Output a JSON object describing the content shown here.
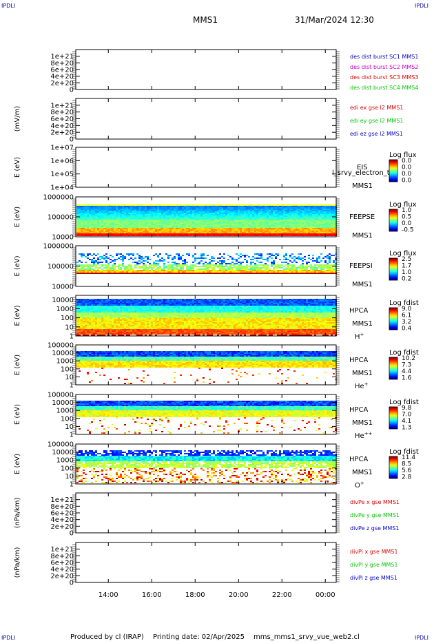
{
  "corner_label": "IPDLI",
  "header": {
    "spacecraft": "MMS1",
    "datetime": "31/Mar/2024 12:30"
  },
  "footer": {
    "produced_by": "Produced by cl (IRAP)",
    "printing_date": "Printing date: 02/Apr/2025",
    "filename": "mms_mms1_srvy_vue_web2.cl"
  },
  "x_axis": {
    "ticks": [
      "14:00",
      "16:00",
      "18:00",
      "20:00",
      "22:00",
      "00:00"
    ],
    "tick_hours": [
      14,
      16,
      18,
      20,
      22,
      24
    ],
    "range_hours": [
      12.5,
      24.5
    ]
  },
  "colors": {
    "red": "#e00000",
    "green": "#00c800",
    "blue": "#0000c8",
    "magenta": "#c800c8"
  },
  "chart_data": [
    {
      "type": "line",
      "panel": 1,
      "ylabel": "",
      "ylim": [
        0,
        1.2e+21
      ],
      "ticks": [
        "0",
        "2e+20",
        "4e+20",
        "6e+20",
        "8e+20",
        "1e+21"
      ],
      "tick_values": [
        0,
        2e+20,
        4e+20,
        6e+20,
        8e+20,
        1e+21
      ],
      "legend": [
        {
          "text": "des dist burst SC1 MMS1",
          "color": "#0000c8"
        },
        {
          "text": "des dist burst SC2 MMS2",
          "color": "#c800c8"
        },
        {
          "text": "des dist burst SC3 MMS3",
          "color": "#e00000"
        },
        {
          "text": "des dist burst SC4 MMS4",
          "color": "#00c800"
        }
      ]
    },
    {
      "type": "line",
      "panel": 2,
      "ylabel": "(mV/m)",
      "ylim": [
        0,
        1.2e+21
      ],
      "ticks": [
        "0",
        "2e+20",
        "4e+20",
        "6e+20",
        "8e+20",
        "1e+21"
      ],
      "tick_values": [
        0,
        2e+20,
        4e+20,
        6e+20,
        8e+20,
        1e+21
      ],
      "legend": [
        {
          "text": "edi ex gse l2 MMS1",
          "color": "#e00000"
        },
        {
          "text": "edi ey gse l2 MMS1",
          "color": "#00c800"
        },
        {
          "text": "edi ez gse l2 MMS1",
          "color": "#0000c8"
        }
      ]
    },
    {
      "type": "heatmap",
      "panel": 3,
      "ylabel": "E (eV)",
      "log_scale": true,
      "ylim": [
        10000,
        10000000
      ],
      "ticks": [
        "1e+04",
        "1e+05",
        "1e+06",
        "1e+07"
      ],
      "tick_values": [
        10000,
        100000,
        1000000,
        10000000
      ],
      "instrument": "EIS",
      "spacecraft": "MMS1",
      "overlay_text": "l_srvy_electron_to",
      "colorbar": {
        "title": "Log flux",
        "ticks": [
          "0.0",
          "0.0",
          "0.0",
          "0.0"
        ]
      },
      "empty": true
    },
    {
      "type": "heatmap",
      "panel": 4,
      "ylabel": "E (eV)",
      "log_scale": true,
      "ylim": [
        10000,
        1000000
      ],
      "ticks": [
        "10000",
        "100000",
        "1000000"
      ],
      "tick_values": [
        10000,
        100000,
        1000000
      ],
      "instrument": "FEEPSE",
      "spacecraft": "MMS1",
      "colorbar": {
        "title": "Log flux",
        "ticks": [
          "1.0",
          "0.5",
          "0.0",
          "-0.5"
        ]
      },
      "data_range": [
        30000,
        650000
      ],
      "peak_energy": 40000
    },
    {
      "type": "heatmap",
      "panel": 5,
      "ylabel": "E (eV)",
      "log_scale": true,
      "ylim": [
        10000,
        1000000
      ],
      "ticks": [
        "10000",
        "100000",
        "1000000"
      ],
      "tick_values": [
        10000,
        100000,
        1000000
      ],
      "instrument": "FEEPSI",
      "spacecraft": "MMS1",
      "colorbar": {
        "title": "Log flux",
        "ticks": [
          "2.5",
          "1.7",
          "1.0",
          "0.2"
        ]
      },
      "data_range": [
        55000,
        500000
      ],
      "peak_energy": 60000
    },
    {
      "type": "heatmap",
      "panel": 6,
      "ylabel": "E (eV)",
      "log_scale": true,
      "ylim": [
        1,
        30000
      ],
      "ticks": [
        "1",
        "10",
        "100",
        "1000",
        "10000"
      ],
      "tick_values": [
        1,
        10,
        100,
        1000,
        10000
      ],
      "instrument": "HPCA",
      "spacecraft": "MMS1",
      "species_base": "H",
      "species_sup": "+",
      "colorbar": {
        "title": "Log fdist",
        "ticks": [
          "9.0",
          "6.1",
          "3.2",
          "0.4"
        ]
      },
      "data_range": [
        1,
        25000
      ]
    },
    {
      "type": "heatmap",
      "panel": 7,
      "ylabel": "E (eV)",
      "log_scale": true,
      "ylim": [
        1,
        100000
      ],
      "ticks": [
        "1",
        "10",
        "100",
        "1000",
        "10000",
        "100000"
      ],
      "tick_values": [
        1,
        10,
        100,
        1000,
        10000,
        100000
      ],
      "instrument": "HPCA",
      "spacecraft": "MMS1",
      "species_base": "He",
      "species_sup": "+",
      "colorbar": {
        "title": "Log fdist",
        "ticks": [
          "10.2",
          "7.3",
          "4.4",
          "1.6"
        ]
      },
      "data_range": [
        1,
        30000
      ]
    },
    {
      "type": "heatmap",
      "panel": 8,
      "ylabel": "E (eV)",
      "log_scale": true,
      "ylim": [
        1,
        100000
      ],
      "ticks": [
        "1",
        "10",
        "100",
        "1000",
        "10000",
        "100000"
      ],
      "tick_values": [
        1,
        10,
        100,
        1000,
        10000,
        100000
      ],
      "instrument": "HPCA",
      "spacecraft": "MMS1",
      "species_base": "He",
      "species_sup": "++",
      "colorbar": {
        "title": "Log fdist",
        "ticks": [
          "9.8",
          "7.0",
          "4.1",
          "1.3"
        ]
      },
      "data_range": [
        1,
        30000
      ]
    },
    {
      "type": "heatmap",
      "panel": 9,
      "ylabel": "E (eV)",
      "log_scale": true,
      "ylim": [
        1,
        100000
      ],
      "ticks": [
        "1",
        "10",
        "100",
        "1000",
        "10000",
        "100000"
      ],
      "tick_values": [
        1,
        10,
        100,
        1000,
        10000,
        100000
      ],
      "instrument": "HPCA",
      "spacecraft": "MMS1",
      "species_base": "O",
      "species_sup": "+",
      "colorbar": {
        "title": "Log fdist",
        "ticks": [
          "11.4",
          "8.5",
          "5.6",
          "2.8"
        ]
      },
      "data_range": [
        1,
        30000
      ]
    },
    {
      "type": "line",
      "panel": 10,
      "ylabel": "(nPa/km)",
      "ylim": [
        0,
        1.2e+21
      ],
      "ticks": [
        "0",
        "2e+20",
        "4e+20",
        "6e+20",
        "8e+20",
        "1e+21"
      ],
      "tick_values": [
        0,
        2e+20,
        4e+20,
        6e+20,
        8e+20,
        1e+21
      ],
      "legend": [
        {
          "text": "divPe x gse MMS1",
          "color": "#e00000"
        },
        {
          "text": "divPe y gse MMS1",
          "color": "#00c800"
        },
        {
          "text": "divPe z gse MMS1",
          "color": "#0000c8"
        }
      ]
    },
    {
      "type": "line",
      "panel": 11,
      "ylabel": "(nPa/km)",
      "ylim": [
        0,
        1.2e+21
      ],
      "ticks": [
        "0",
        "2e+20",
        "4e+20",
        "6e+20",
        "8e+20",
        "1e+21"
      ],
      "tick_values": [
        0,
        2e+20,
        4e+20,
        6e+20,
        8e+20,
        1e+21
      ],
      "legend": [
        {
          "text": "divPi x gse MMS1",
          "color": "#e00000"
        },
        {
          "text": "divPi y gse MMS1",
          "color": "#00c800"
        },
        {
          "text": "divPi z gse MMS1",
          "color": "#0000c8"
        }
      ]
    }
  ]
}
